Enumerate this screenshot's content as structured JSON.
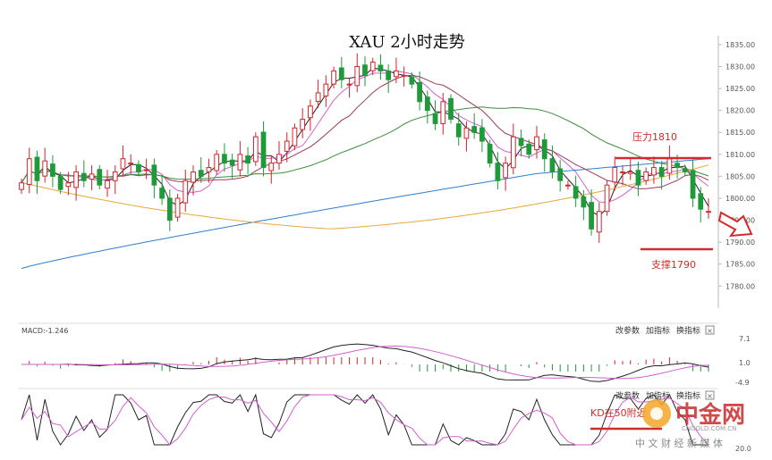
{
  "chart_data": {
    "type": "candlestick",
    "title": "XAU 2小时走势",
    "y_axis": {
      "ticks": [
        "1835.00",
        "1830.00",
        "1825.00",
        "1820.00",
        "1815.00",
        "1810.00",
        "1805.00",
        "1800.00",
        "1795.00",
        "1790.00",
        "1785.00",
        "1780.00"
      ],
      "range": [
        1777,
        1836
      ]
    },
    "moving_average_colors": {
      "ma_black": "#222222",
      "ma_pink": "#d35fd0",
      "ma_maroon": "#9b3b58",
      "ma_green": "#3a8f3a",
      "ma_blue": "#2f7fd1",
      "ma_orange": "#e9a83a"
    },
    "candle_colors": {
      "up": "#d7232c",
      "down": "#1e9a3a"
    },
    "closes": [
      1803.5,
      1809,
      1804,
      1808.5,
      1805,
      1802,
      1803.5,
      1806,
      1804,
      1805.5,
      1803,
      1804,
      1806,
      1809,
      1808,
      1806,
      1806.5,
      1803,
      1800,
      1795,
      1800,
      1804,
      1806,
      1805,
      1807,
      1810,
      1808,
      1807.5,
      1810,
      1808,
      1814,
      1807,
      1808,
      1810,
      1813,
      1816,
      1818,
      1821,
      1824,
      1826,
      1829,
      1827,
      1826,
      1830,
      1828,
      1831,
      1829,
      1827,
      1829,
      1828,
      1826,
      1822,
      1820,
      1817,
      1822,
      1818,
      1814,
      1816,
      1815,
      1813,
      1808,
      1804,
      1808,
      1814,
      1812,
      1810,
      1814,
      1809,
      1806,
      1804,
      1803,
      1800,
      1798,
      1793,
      1797,
      1803,
      1807,
      1806,
      1806,
      1803,
      1806,
      1807,
      1805,
      1809,
      1807,
      1806,
      1800,
      1797.5,
      1797
    ],
    "annotations": {
      "resistance": "压力1810",
      "support": "支撑1790",
      "resistance_level": 1810,
      "support_level": 1790
    },
    "macd_panel": {
      "label": "MACD:-1.246",
      "ticks": [
        "7.1",
        "1.0",
        "-4.9"
      ],
      "buttons": [
        "改参数",
        "加指标",
        "换指标"
      ]
    },
    "kd_panel": {
      "annotation": "KD在50附近",
      "ticks": [
        "20.0"
      ],
      "buttons": [
        "改参数",
        "加指标",
        "换指标"
      ]
    }
  },
  "watermark": {
    "text": "中金网",
    "url": "CNGOLD.COM.CN",
    "slogan": "中 文 财 经 新 媒 体"
  }
}
